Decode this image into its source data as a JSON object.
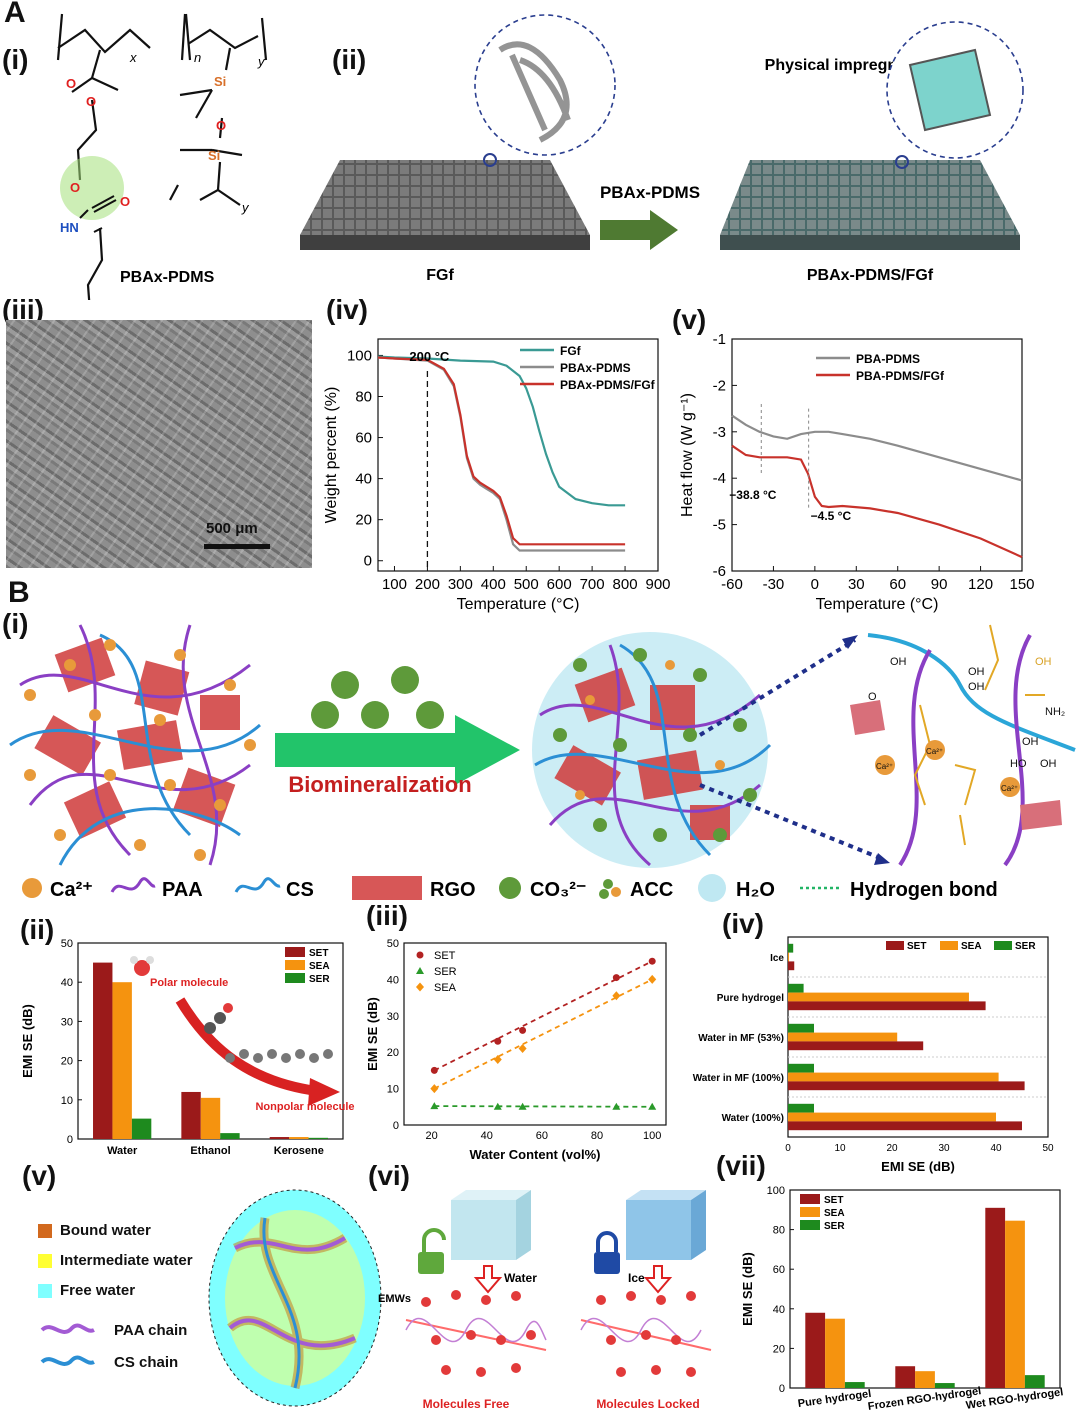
{
  "panels": {
    "A": "A",
    "B": "B",
    "i": "(i)",
    "ii": "(ii)",
    "iii": "(iii)",
    "iv": "(iv)",
    "v": "(v)",
    "vi": "(vi)",
    "vii": "(vii)"
  },
  "A_i": {
    "molecule": "PBAx-PDMS",
    "x": "x",
    "y": "y",
    "n": "n",
    "nh": "HN",
    "si": "Si",
    "o": "O"
  },
  "A_ii": {
    "process": "Physical impregnation",
    "arrow_label": "PBAx-PDMS",
    "left": "FGf",
    "right": "PBAx-PDMS/FGf"
  },
  "A_iii": {
    "scalebar": "500 μm"
  },
  "B_i": {
    "arrow_label": "Biomineralization",
    "legend": [
      "Ca²⁺",
      "PAA",
      "CS",
      "RGO",
      "CO₃²⁻",
      "ACC",
      "H₂O",
      "Hydrogen bond"
    ],
    "chem": [
      "OH",
      "OH",
      "OH",
      "NH₂",
      "OH",
      "Ca²⁺",
      "Ca²⁺",
      "Ca²⁺",
      "HO",
      "OH",
      "O",
      "OH"
    ]
  },
  "B_ii_labels": {
    "polar": "Polar molecule",
    "nonpolar": "Nonpolar molecule"
  },
  "B_v": {
    "legend": [
      "Bound water",
      "Intermediate water",
      "Free water",
      "PAA chain",
      "CS chain"
    ],
    "colors": [
      "#d2691e",
      "#ffff33",
      "#7fffff"
    ]
  },
  "B_vi": {
    "water": "Water",
    "ice": "Ice",
    "emw": "EMWs",
    "free": "Molecules Free",
    "locked": "Molecules Locked"
  },
  "chart_data": [
    {
      "id": "A_iv",
      "type": "line",
      "xlabel": "Temperature (°C)",
      "ylabel": "Weight percent (%)",
      "xlim": [
        50,
        900
      ],
      "ylim": [
        -5,
        108
      ],
      "xticks": [
        100,
        200,
        300,
        400,
        500,
        600,
        700,
        800,
        900
      ],
      "yticks": [
        0,
        20,
        40,
        60,
        80,
        100
      ],
      "annotation": "200 °C",
      "annotation_x": 200,
      "series": [
        {
          "name": "FGf",
          "color": "#3a9a94",
          "x": [
            50,
            100,
            200,
            300,
            400,
            440,
            480,
            500,
            520,
            540,
            560,
            580,
            600,
            650,
            700,
            750,
            800
          ],
          "y": [
            99.5,
            99,
            98.5,
            97.5,
            97,
            95,
            90,
            84,
            75,
            63,
            52,
            43,
            36,
            30,
            28,
            27,
            27
          ]
        },
        {
          "name": "PBAx-PDMS",
          "color": "#8c8c8c",
          "x": [
            50,
            100,
            200,
            250,
            280,
            300,
            320,
            340,
            360,
            380,
            400,
            420,
            440,
            460,
            480,
            500,
            600,
            700,
            800
          ],
          "y": [
            99,
            98.5,
            97.5,
            93,
            85,
            70,
            50,
            40,
            37,
            35,
            33,
            30,
            20,
            8,
            5,
            5,
            5,
            5,
            5
          ]
        },
        {
          "name": "PBAx-PDMS/FGf",
          "color": "#c8322b",
          "x": [
            50,
            100,
            200,
            250,
            280,
            300,
            320,
            340,
            360,
            380,
            400,
            420,
            440,
            460,
            480,
            500,
            600,
            700,
            800
          ],
          "y": [
            99,
            98.5,
            97.8,
            93.5,
            86,
            71,
            51,
            41,
            38,
            36,
            34,
            31,
            22,
            11,
            8,
            8,
            8,
            8,
            8
          ]
        }
      ]
    },
    {
      "id": "A_v",
      "type": "line",
      "xlabel": "Temperature (°C)",
      "ylabel": "Heat flow (W g⁻¹)",
      "xlim": [
        -60,
        150
      ],
      "ylim": [
        -6,
        -1
      ],
      "xticks": [
        -60,
        -30,
        0,
        30,
        60,
        90,
        120,
        150
      ],
      "yticks": [
        -6,
        -5,
        -4,
        -3,
        -2,
        -1
      ],
      "annotations": [
        {
          "text": "−38.8 °C",
          "x": -38.8
        },
        {
          "text": "−4.5 °C",
          "x": -4.5
        }
      ],
      "series": [
        {
          "name": "PBA-PDMS",
          "color": "#8c8c8c",
          "x": [
            -60,
            -50,
            -40,
            -30,
            -20,
            -10,
            0,
            10,
            20,
            40,
            60,
            90,
            120,
            150
          ],
          "y": [
            -2.65,
            -2.85,
            -3.0,
            -3.1,
            -3.15,
            -3.05,
            -3.0,
            -3.0,
            -3.05,
            -3.15,
            -3.3,
            -3.55,
            -3.8,
            -4.05
          ]
        },
        {
          "name": "PBA-PDMS/FGf",
          "color": "#c8322b",
          "x": [
            -60,
            -50,
            -40,
            -30,
            -20,
            -10,
            -5,
            0,
            5,
            10,
            20,
            40,
            60,
            90,
            120,
            150
          ],
          "y": [
            -3.3,
            -3.5,
            -3.55,
            -3.55,
            -3.55,
            -3.6,
            -3.9,
            -4.4,
            -4.6,
            -4.62,
            -4.6,
            -4.65,
            -4.75,
            -5.0,
            -5.3,
            -5.7
          ]
        }
      ]
    },
    {
      "id": "B_ii",
      "type": "bar",
      "ylabel": "EMI SE (dB)",
      "ylim": [
        0,
        50
      ],
      "yticks": [
        0,
        10,
        20,
        30,
        40,
        50
      ],
      "categories": [
        "Water",
        "Ethanol",
        "Kerosene"
      ],
      "series": [
        {
          "name": "SET",
          "color": "#9b1a1a",
          "values": [
            45,
            12,
            0.5
          ]
        },
        {
          "name": "SEA",
          "color": "#f5930f",
          "values": [
            40,
            10.5,
            0.5
          ]
        },
        {
          "name": "SER",
          "color": "#1e8a1e",
          "values": [
            5.2,
            1.5,
            0.3
          ]
        }
      ]
    },
    {
      "id": "B_iii",
      "type": "scatter",
      "xlabel": "Water Content (vol%)",
      "ylabel": "EMI SE (dB)",
      "xlim": [
        10,
        105
      ],
      "ylim": [
        0,
        50
      ],
      "xticks": [
        20,
        40,
        60,
        80,
        100
      ],
      "yticks": [
        0,
        10,
        20,
        30,
        40,
        50
      ],
      "series": [
        {
          "name": "SET",
          "color": "#b22222",
          "marker": "circle",
          "x": [
            21,
            44,
            53,
            87,
            100
          ],
          "y": [
            15,
            23,
            26,
            40.5,
            45
          ]
        },
        {
          "name": "SER",
          "color": "#2a9a2a",
          "marker": "triangle",
          "x": [
            21,
            44,
            53,
            87,
            100
          ],
          "y": [
            5.2,
            5,
            5,
            5,
            5
          ]
        },
        {
          "name": "SEA",
          "color": "#f5930f",
          "marker": "diamond",
          "x": [
            21,
            44,
            53,
            87,
            100
          ],
          "y": [
            10,
            18,
            21,
            35.5,
            40
          ]
        }
      ]
    },
    {
      "id": "B_iv",
      "type": "bar",
      "orientation": "horizontal",
      "xlabel": "EMI SE (dB)",
      "xlim": [
        0,
        50
      ],
      "xticks": [
        0,
        10,
        20,
        30,
        40,
        50
      ],
      "categories": [
        "Ice",
        "Pure hydrogel",
        "Water in MF (53%)",
        "Water in MF (100%)",
        "Water (100%)"
      ],
      "series": [
        {
          "name": "SET",
          "color": "#9b1a1a",
          "values": [
            1.2,
            38,
            26,
            45.5,
            45
          ]
        },
        {
          "name": "SEA",
          "color": "#f5930f",
          "values": [
            0.2,
            34.8,
            21,
            40.5,
            40
          ]
        },
        {
          "name": "SER",
          "color": "#1e8a1e",
          "values": [
            1,
            3,
            5,
            5,
            5
          ]
        }
      ]
    },
    {
      "id": "B_vii",
      "type": "bar",
      "ylabel": "EMI SE (dB)",
      "ylim": [
        0,
        100
      ],
      "yticks": [
        0,
        20,
        40,
        60,
        80,
        100
      ],
      "categories": [
        "Pure hydrogel",
        "Frozen RGO-hydrogel",
        "Wet RGO-hydrogel"
      ],
      "series": [
        {
          "name": "SET",
          "color": "#9b1a1a",
          "values": [
            38,
            11,
            91
          ]
        },
        {
          "name": "SEA",
          "color": "#f5930f",
          "values": [
            35,
            8.5,
            84.5
          ]
        },
        {
          "name": "SER",
          "color": "#1e8a1e",
          "values": [
            3,
            2.5,
            6.5
          ]
        }
      ]
    }
  ]
}
